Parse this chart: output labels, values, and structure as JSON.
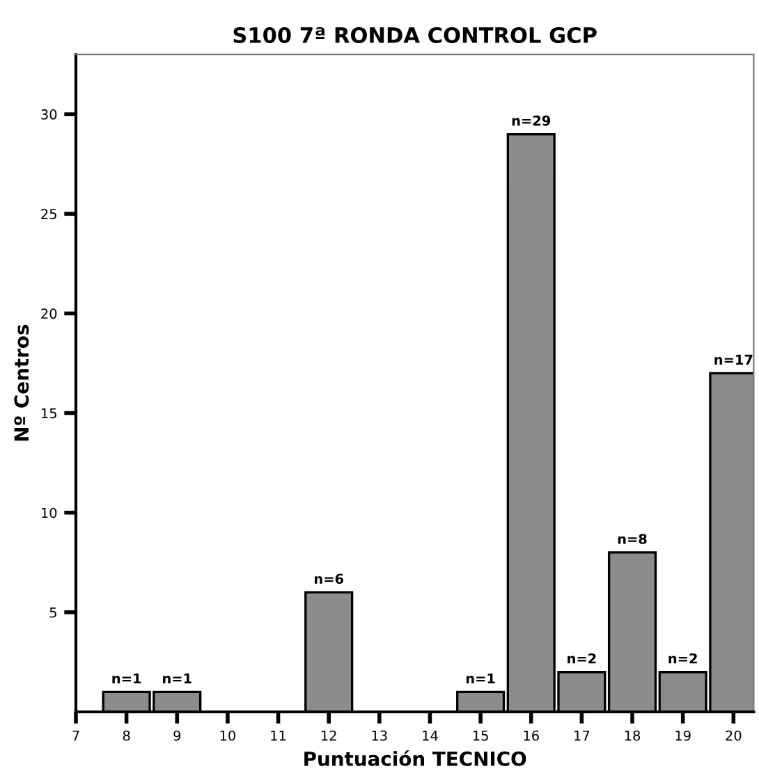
{
  "chart_data": {
    "type": "bar",
    "title": "S100 7ª RONDA CONTROL GCP",
    "xlabel": "Puntuación TECNICO",
    "ylabel": "Nº Centros",
    "x": [
      8,
      9,
      12,
      15,
      16,
      17,
      18,
      19,
      20
    ],
    "values": [
      1,
      1,
      6,
      1,
      29,
      2,
      8,
      2,
      17
    ],
    "value_labels": [
      "n=1",
      "n=1",
      "n=6",
      "n=1",
      "n=29",
      "n=2",
      "n=8",
      "n=2",
      "n=17"
    ],
    "color": "#8c8c8c",
    "xlim": [
      7,
      20.4
    ],
    "xticks": [
      7,
      8,
      9,
      10,
      11,
      12,
      13,
      14,
      15,
      16,
      17,
      18,
      19,
      20
    ],
    "ylim": [
      0,
      33
    ],
    "yticks": [
      5,
      10,
      15,
      20,
      25,
      30
    ],
    "grid": false
  }
}
